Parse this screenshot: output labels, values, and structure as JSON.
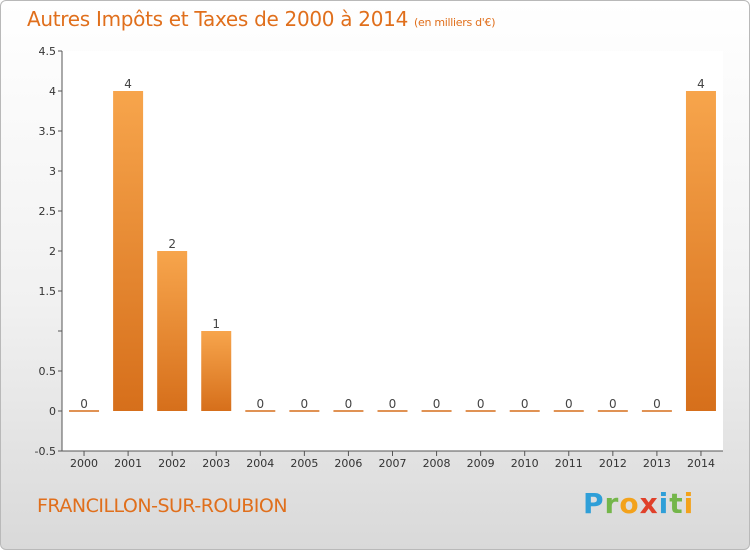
{
  "title": "Autres Impôts et Taxes de 2000 à 2014",
  "subtitle": "(en milliers d'€)",
  "commune": "FRANCILLON-SUR-ROUBION",
  "logo": {
    "letters": [
      "P",
      "r",
      "o",
      "x",
      "i",
      "t",
      "i"
    ],
    "colors": [
      "#2f9fd8",
      "#74b64a",
      "#f3a21b",
      "#e0402a",
      "#2f9fd8",
      "#74b64a",
      "#f3a21b"
    ]
  },
  "colors": {
    "accent": "#e06f1c",
    "bar_light": "#f7a54c",
    "bar_dark": "#d66f1b"
  },
  "chart_data": {
    "type": "bar",
    "categories": [
      "2000",
      "2001",
      "2002",
      "2003",
      "2004",
      "2005",
      "2006",
      "2007",
      "2008",
      "2009",
      "2010",
      "2011",
      "2012",
      "2013",
      "2014"
    ],
    "values": [
      0,
      4,
      2,
      1,
      0,
      0,
      0,
      0,
      0,
      0,
      0,
      0,
      0,
      0,
      4
    ],
    "data_labels": [
      "0",
      "4",
      "2",
      "1",
      "0",
      "0",
      "0",
      "0",
      "0",
      "0",
      "0",
      "0",
      "0",
      "0",
      "4"
    ],
    "ylim": [
      -0.5,
      4.5
    ],
    "y_ticks": [
      -0.5,
      0,
      0.5,
      1,
      1.5,
      2,
      2.5,
      3,
      3.5,
      4,
      4.5
    ],
    "y_tick_labels": [
      "-0.5",
      "0",
      "0.5",
      "",
      "1.5",
      "2",
      "2.5",
      "3",
      "3.5",
      "4",
      "4.5"
    ],
    "xlabel": "",
    "ylabel": "",
    "grid": false,
    "legend": "none"
  }
}
